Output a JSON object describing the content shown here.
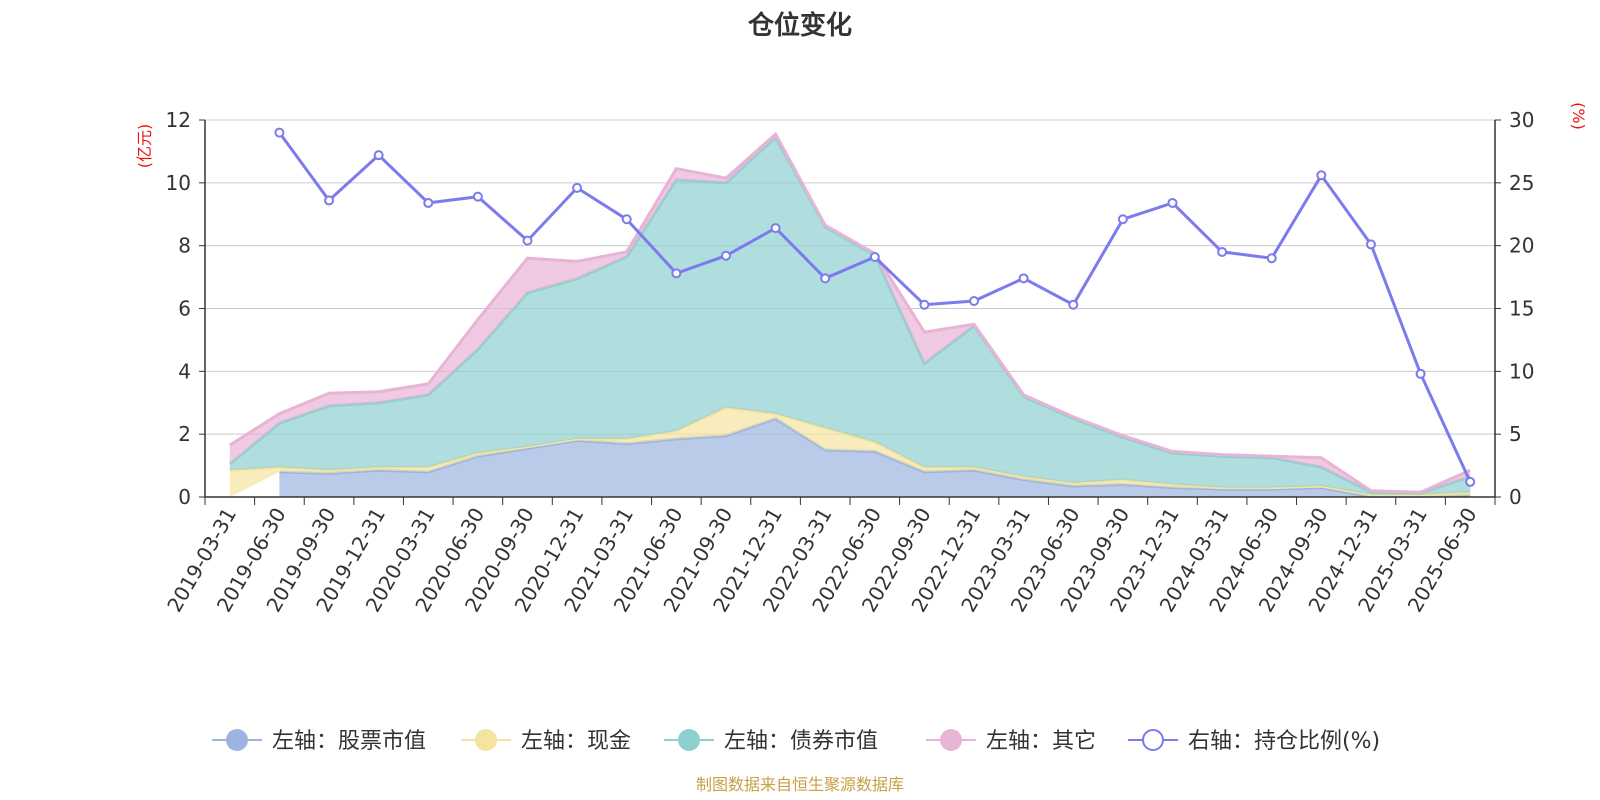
{
  "chart_data": {
    "type": "area",
    "title": "仓位变化",
    "left_axis_unit": "(亿元)",
    "right_axis_unit": "(%)",
    "categories": [
      "2019-03-31",
      "2019-06-30",
      "2019-09-30",
      "2019-12-31",
      "2020-03-31",
      "2020-06-30",
      "2020-09-30",
      "2020-12-31",
      "2021-03-31",
      "2021-06-30",
      "2021-09-30",
      "2021-12-31",
      "2022-03-31",
      "2022-06-30",
      "2022-09-30",
      "2022-12-31",
      "2023-03-31",
      "2023-06-30",
      "2023-09-30",
      "2023-12-31",
      "2024-03-31",
      "2024-06-30",
      "2024-09-30",
      "2024-12-31",
      "2025-03-31",
      "2025-06-30"
    ],
    "y_left": {
      "min": 0,
      "max": 12,
      "ticks": [
        "0",
        "2",
        "4",
        "6",
        "8",
        "10",
        "12"
      ]
    },
    "y_right": {
      "min": 0,
      "max": 30,
      "ticks": [
        "0",
        "5",
        "10",
        "15",
        "20",
        "25",
        "30"
      ]
    },
    "series": [
      {
        "name": "左轴：股票市值",
        "axis": "left",
        "kind": "stacked-area",
        "color": "#9bb5e0",
        "values": [
          null,
          0.8,
          0.75,
          0.85,
          0.8,
          1.3,
          1.55,
          1.8,
          1.7,
          1.85,
          1.95,
          2.5,
          1.5,
          1.45,
          0.8,
          0.85,
          0.55,
          0.35,
          0.4,
          0.3,
          0.25,
          0.25,
          0.3,
          0.02,
          0.02,
          0.05
        ]
      },
      {
        "name": "左轴：现金",
        "axis": "left",
        "kind": "stacked-area",
        "color": "#f5e4a0",
        "values": [
          0.85,
          0.15,
          0.1,
          0.1,
          0.15,
          0.1,
          0.05,
          0.05,
          0.15,
          0.25,
          0.9,
          0.15,
          0.7,
          0.3,
          0.15,
          0.1,
          0.1,
          0.1,
          0.15,
          0.1,
          0.05,
          0.05,
          0.05,
          0.05,
          0.05,
          0.1
        ]
      },
      {
        "name": "左轴：债券市值",
        "axis": "left",
        "kind": "stacked-area",
        "color": "#8ed0d0",
        "values": [
          0.2,
          1.4,
          2.05,
          2.05,
          2.3,
          3.3,
          4.9,
          5.1,
          5.8,
          8.0,
          7.15,
          8.8,
          6.4,
          5.95,
          3.3,
          4.5,
          2.55,
          2.05,
          1.35,
          1.0,
          1.0,
          0.95,
          0.6,
          0.1,
          0.05,
          0.5
        ]
      },
      {
        "name": "左轴：其它",
        "axis": "left",
        "kind": "stacked-area",
        "color": "#e8b4d6",
        "values": [
          0.6,
          0.3,
          0.4,
          0.35,
          0.35,
          0.95,
          1.1,
          0.55,
          0.15,
          0.35,
          0.15,
          0.1,
          0.05,
          0.05,
          1.0,
          0.05,
          0.05,
          0.05,
          0.05,
          0.05,
          0.05,
          0.05,
          0.3,
          0.03,
          0.03,
          0.2
        ]
      },
      {
        "name": "右轴：持仓比例(%)",
        "axis": "right",
        "kind": "line",
        "color": "#7b7bee",
        "values": [
          null,
          29.0,
          23.6,
          27.2,
          23.4,
          23.9,
          20.4,
          24.6,
          22.1,
          17.8,
          19.2,
          21.4,
          17.4,
          19.1,
          15.3,
          15.6,
          17.4,
          15.3,
          22.1,
          23.4,
          19.5,
          19.0,
          25.6,
          20.1,
          9.8,
          1.2
        ]
      }
    ],
    "legend_position": "bottom-center",
    "grid": true,
    "source_note": "制图数据来自恒生聚源数据库"
  }
}
